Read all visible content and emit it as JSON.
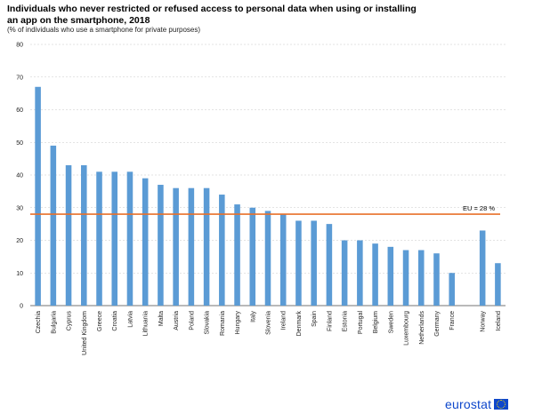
{
  "chart_data": {
    "type": "bar",
    "title": "Individuals who never restricted or refused access to personal data when using or installing an app on the smartphone, 2018",
    "subtitle": "(% of individuals who use a smartphone for private purposes)",
    "ylim": [
      0,
      80
    ],
    "yticks": [
      0,
      10,
      20,
      30,
      40,
      50,
      60,
      70,
      80
    ],
    "grid": true,
    "categories": [
      "Czechia",
      "Bulgaria",
      "Cyprus",
      "United Kingdom",
      "Greece",
      "Croatia",
      "Latvia",
      "Lithuania",
      "Malta",
      "Austria",
      "Poland",
      "Slovakia",
      "Romania",
      "Hungary",
      "Italy",
      "Slovenia",
      "Ireland",
      "Denmark",
      "Spain",
      "Finland",
      "Estonia",
      "Portugal",
      "Belgium",
      "Sweden",
      "Luxembourg",
      "Netherlands",
      "Germany",
      "France",
      "",
      "Norway",
      "Iceland"
    ],
    "values": [
      67,
      49,
      43,
      43,
      41,
      41,
      41,
      39,
      37,
      36,
      36,
      36,
      34,
      31,
      30,
      29,
      28,
      26,
      26,
      25,
      20,
      20,
      19,
      18,
      17,
      17,
      16,
      10,
      null,
      23,
      13
    ],
    "reference_line": {
      "value": 28,
      "label": "EU = 28 %"
    },
    "colors": {
      "bar": "#5b9bd5",
      "reference": "#e8702a",
      "grid": "#c8c8c8"
    }
  },
  "footer": {
    "logo_text": "eurostat"
  }
}
